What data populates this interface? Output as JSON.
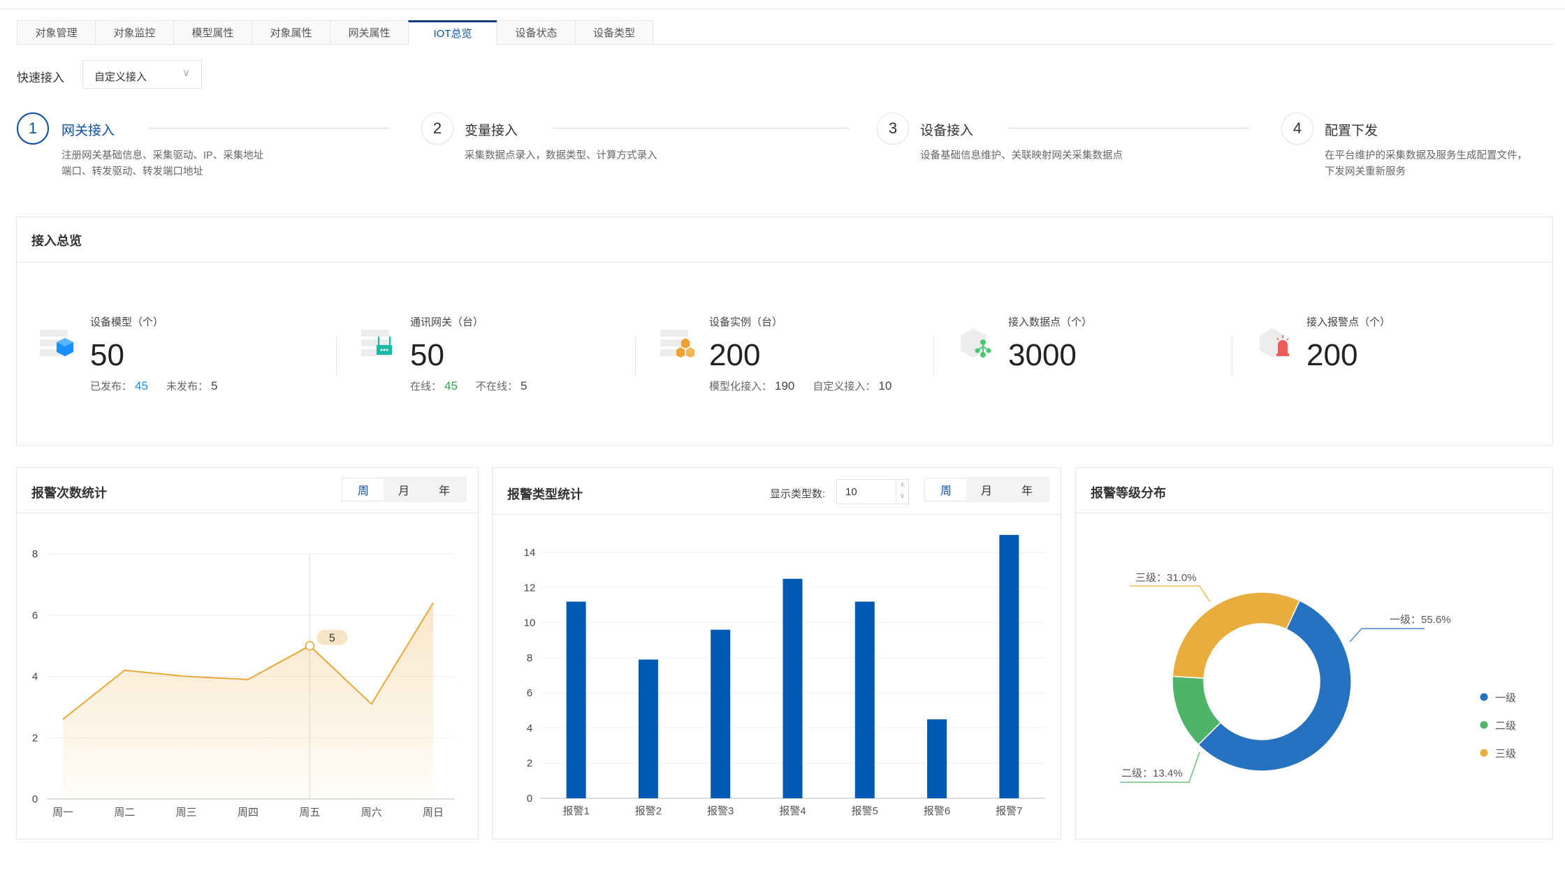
{
  "tabs": [
    "对象管理",
    "对象监控",
    "模型属性",
    "对象属性",
    "网关属性",
    "IOT总览",
    "设备状态",
    "设备类型"
  ],
  "active_tab": "IOT总览",
  "quick_access": {
    "label": "快速接入",
    "value": "自定义接入"
  },
  "steps": [
    {
      "num": "1",
      "title": "网关接入",
      "desc": [
        "注册网关基础信息、采集驱动、IP、采集地址",
        "端口、转发驱动、转发端口地址"
      ]
    },
    {
      "num": "2",
      "title": "变量接入",
      "desc": [
        "采集数据点录入，数据类型、计算方式录入"
      ]
    },
    {
      "num": "3",
      "title": "设备接入",
      "desc": [
        "设备基础信息维护、关联映射网关采集数据点"
      ]
    },
    {
      "num": "4",
      "title": "配置下发",
      "desc": [
        "在平台维护的采集数据及服务生成配置文件，",
        "下发网关重新服务"
      ]
    }
  ],
  "overview": {
    "title": "接入总览",
    "stats": [
      {
        "label": "设备模型（个）",
        "value": "50",
        "icon": "cube-icon",
        "sub": [
          {
            "k": "已发布：",
            "v": "45",
            "color": "#1890ff"
          },
          {
            "k": "未发布：",
            "v": "5"
          }
        ]
      },
      {
        "label": "通讯网关（台）",
        "value": "50",
        "icon": "router-icon",
        "sub": [
          {
            "k": "在线：",
            "v": "45",
            "color": "#2ea84a"
          },
          {
            "k": "不在线：",
            "v": "5"
          }
        ]
      },
      {
        "label": "设备实例（台）",
        "value": "200",
        "icon": "boxes-icon",
        "sub": [
          {
            "k": "模型化接入：",
            "v": "190"
          },
          {
            "k": "自定义接入：",
            "v": "10"
          }
        ]
      },
      {
        "label": "接入数据点（个）",
        "value": "3000",
        "icon": "network-node-icon",
        "sub": []
      },
      {
        "label": "接入报警点（个）",
        "value": "200",
        "icon": "alarm-light-icon",
        "sub": []
      }
    ]
  },
  "periods": [
    "周",
    "月",
    "年"
  ],
  "alarm_count": {
    "title": "报警次数统计",
    "tooltip": "5"
  },
  "alarm_type": {
    "title": "报警类型统计",
    "count_label": "显示类型数:",
    "count_value": "10"
  },
  "alarm_level": {
    "title": "报警等级分布"
  },
  "chart_data": [
    {
      "type": "area",
      "categories": [
        "周一",
        "周二",
        "周三",
        "周四",
        "周五",
        "周六",
        "周日"
      ],
      "values": [
        2.6,
        4.2,
        4.0,
        3.9,
        5.0,
        3.1,
        6.4
      ],
      "ylim": [
        0,
        8
      ],
      "yticks": [
        0,
        2,
        4,
        6,
        8
      ],
      "grid": true,
      "color": "#e8a838",
      "highlight": {
        "category": "周五",
        "value": 5
      }
    },
    {
      "type": "bar",
      "categories": [
        "报警1",
        "报警2",
        "报警3",
        "报警4",
        "报警5",
        "报警6",
        "报警7"
      ],
      "values": [
        11.2,
        7.9,
        9.6,
        12.5,
        11.2,
        4.5,
        15
      ],
      "ylim": [
        0,
        15
      ],
      "yticks": [
        0,
        2,
        4,
        6,
        8,
        10,
        12,
        14
      ],
      "grid": true,
      "color": "#0059b3"
    },
    {
      "type": "pie",
      "donut": true,
      "legend": "right",
      "slices": [
        {
          "name": "一级",
          "value": 55.6,
          "label": "一级：55.6%",
          "color": "#2772c0"
        },
        {
          "name": "二级",
          "value": 13.4,
          "label": "二级：13.4%",
          "color": "#4fb36a"
        },
        {
          "name": "三级",
          "value": 31.0,
          "label": "三级：31.0%",
          "color": "#e8ad3c"
        }
      ]
    }
  ]
}
